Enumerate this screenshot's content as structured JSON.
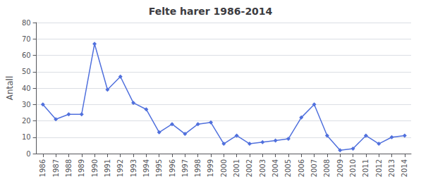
{
  "chart_data": {
    "type": "line",
    "title": "Felte harer 1986-2014",
    "ylabel": "Antall",
    "x": [
      1986,
      1987,
      1988,
      1989,
      1990,
      1991,
      1992,
      1993,
      1994,
      1995,
      1996,
      1997,
      1998,
      1999,
      2000,
      2001,
      2002,
      2003,
      2004,
      2005,
      2006,
      2007,
      2008,
      2009,
      2010,
      2011,
      2012,
      2013,
      2014
    ],
    "values": [
      30,
      21,
      24,
      24,
      67,
      39,
      47,
      31,
      27,
      13,
      18,
      12,
      18,
      19,
      6,
      11,
      6,
      7,
      8,
      9,
      22,
      30,
      11,
      2,
      3,
      11,
      6,
      10,
      11
    ],
    "marker": "diamond",
    "xlim": [
      1985.5,
      2014.5
    ],
    "xticks": [
      1986,
      1987,
      1988,
      1989,
      1990,
      1991,
      1992,
      1993,
      1994,
      1995,
      1996,
      1997,
      1998,
      1999,
      2000,
      2001,
      2002,
      2003,
      2004,
      2005,
      2006,
      2007,
      2008,
      2009,
      2010,
      2011,
      2012,
      2013,
      2014
    ],
    "ylim": [
      0,
      80
    ],
    "yticks": [
      0,
      10,
      20,
      30,
      40,
      50,
      60,
      70,
      80
    ],
    "grid": true
  }
}
